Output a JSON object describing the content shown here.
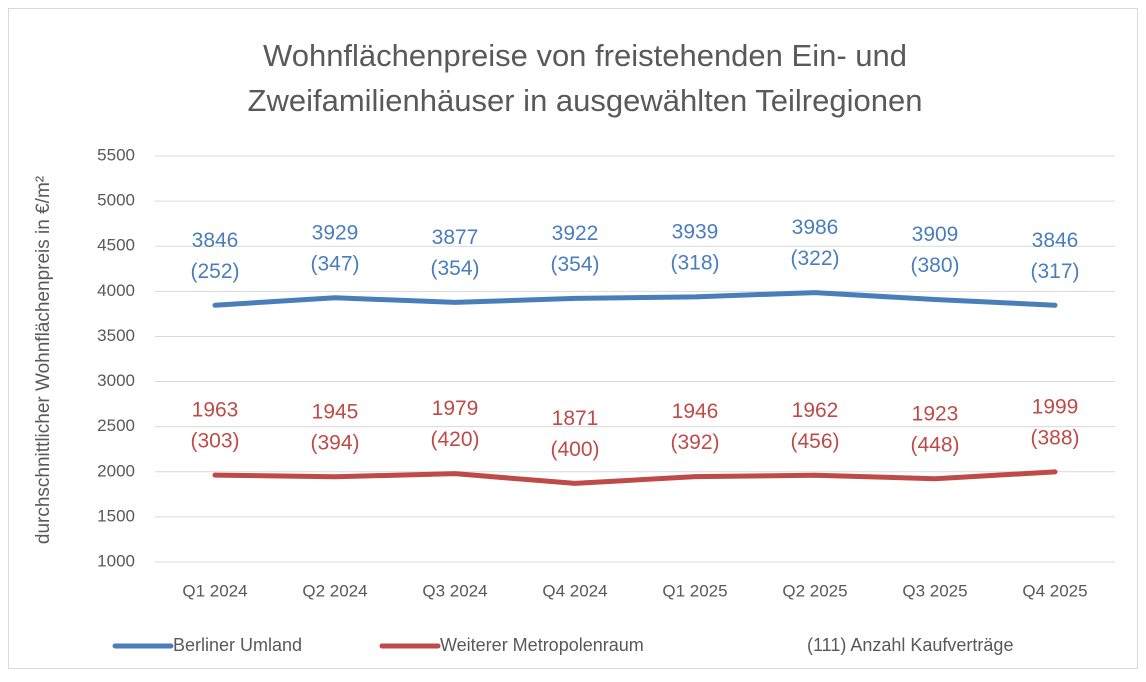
{
  "chart_data": {
    "type": "line",
    "title": [
      "Wohnflächenpreise von freistehenden Ein- und",
      "Zweifamilienhäuser in ausgewählten Teilregionen"
    ],
    "y_label": "durchschnittlicher Wohnflächenpreis in €/m²",
    "categories": [
      "Q1 2024",
      "Q2 2024",
      "Q3 2024",
      "Q4 2024",
      "Q1 2025",
      "Q2 2025",
      "Q3 2025",
      "Q4 2025"
    ],
    "series": [
      {
        "name": "Berliner Umland",
        "color": "#4a7ebb",
        "values": [
          3846,
          3929,
          3877,
          3922,
          3939,
          3986,
          3909,
          3846
        ],
        "counts": [
          252,
          347,
          354,
          354,
          318,
          322,
          380,
          317
        ],
        "count_labels": [
          "(252)",
          "(347)",
          "(354)",
          "(354)",
          "(318)",
          "(322)",
          "(380)",
          "(317)"
        ]
      },
      {
        "name": "Weiterer Metropolenraum",
        "color": "#be4b48",
        "values": [
          1963,
          1945,
          1979,
          1871,
          1946,
          1962,
          1923,
          1999
        ],
        "counts": [
          303,
          394,
          420,
          400,
          392,
          456,
          448,
          388
        ],
        "count_labels": [
          "(303)",
          "(394)",
          "(420)",
          "(400)",
          "(392)",
          "(456)",
          "(448)",
          "(388)"
        ]
      }
    ],
    "legend_note": "(111) Anzahl Kaufverträge",
    "ylim": [
      1000,
      5500
    ],
    "yticks": [
      1000,
      1500,
      2000,
      2500,
      3000,
      3500,
      4000,
      4500,
      5000,
      5500
    ],
    "grid": true,
    "legend": "bottom"
  }
}
